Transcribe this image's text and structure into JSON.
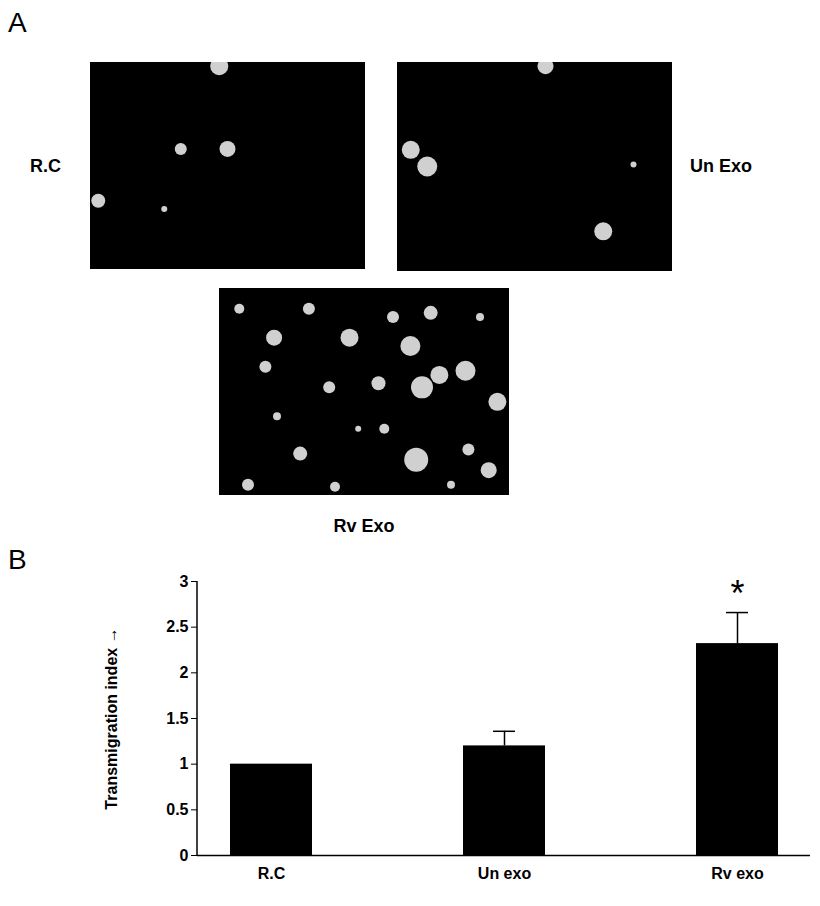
{
  "panel_a": {
    "letter": "A",
    "images": [
      {
        "label": "R.C"
      },
      {
        "label": "Un Exo"
      },
      {
        "label": "Rv Exo"
      }
    ]
  },
  "chart_data": {
    "letter": "B",
    "type": "bar",
    "categories": [
      "R.C",
      "Un exo",
      "Rv exo"
    ],
    "values": [
      1,
      1.2,
      2.32
    ],
    "errors": [
      null,
      0.16,
      0.34
    ],
    "color": "#000000",
    "ylabel": "Transmigration index",
    "ylim": [
      0,
      3
    ],
    "yticks": [
      0,
      0.5,
      1,
      1.5,
      2,
      2.5,
      3
    ],
    "grid": false,
    "annotations": [
      {
        "category": "Rv exo",
        "text": "*"
      }
    ]
  }
}
